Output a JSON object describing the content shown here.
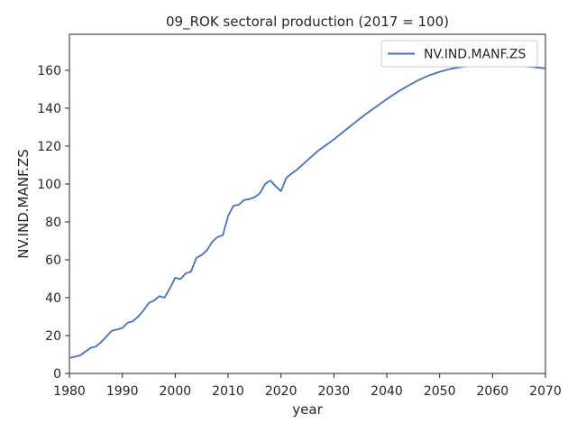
{
  "chart_data": {
    "type": "line",
    "title": "09_ROK sectoral production (2017 = 100)",
    "xlabel": "year",
    "ylabel": "NV.IND.MANF.ZS",
    "xlim": [
      1980,
      2070
    ],
    "ylim": [
      0,
      179
    ],
    "xticks": [
      1980,
      1990,
      2000,
      2010,
      2020,
      2030,
      2040,
      2050,
      2060,
      2070
    ],
    "yticks": [
      0,
      20,
      40,
      60,
      80,
      100,
      120,
      140,
      160
    ],
    "grid": false,
    "legend_position": "top-right",
    "series": [
      {
        "name": "NV.IND.MANF.ZS",
        "color": "#4c72b0",
        "x": [
          1980,
          1981,
          1982,
          1983,
          1984,
          1985,
          1986,
          1987,
          1988,
          1989,
          1990,
          1991,
          1992,
          1993,
          1994,
          1995,
          1996,
          1997,
          1998,
          1999,
          2000,
          2001,
          2002,
          2003,
          2004,
          2005,
          2006,
          2007,
          2008,
          2009,
          2010,
          2011,
          2012,
          2013,
          2014,
          2015,
          2016,
          2017,
          2018,
          2019,
          2020,
          2021,
          2022,
          2023,
          2024,
          2025,
          2026,
          2027,
          2028,
          2029,
          2030,
          2032,
          2034,
          2036,
          2038,
          2040,
          2042,
          2044,
          2046,
          2048,
          2050,
          2052,
          2054,
          2056,
          2058,
          2060,
          2062,
          2064,
          2066,
          2068,
          2070
        ],
        "values": [
          8.2,
          8.8,
          9.5,
          11.5,
          13.5,
          14.2,
          16.5,
          19.5,
          22.5,
          23.2,
          24.0,
          26.8,
          27.5,
          30.0,
          33.2,
          37.2,
          38.5,
          40.8,
          40.0,
          45.0,
          50.5,
          49.8,
          52.8,
          53.8,
          61.0,
          62.5,
          65.0,
          69.5,
          72.0,
          73.0,
          83.0,
          88.5,
          89.0,
          91.5,
          92.0,
          93.0,
          95.0,
          100.0,
          101.8,
          98.8,
          96.2,
          103.2,
          105.5,
          107.5,
          110.0,
          112.5,
          115.0,
          117.5,
          119.5,
          121.5,
          123.5,
          128.0,
          132.5,
          136.8,
          140.8,
          144.8,
          148.5,
          151.8,
          154.8,
          157.3,
          159.2,
          160.7,
          161.7,
          162.2,
          162.5,
          162.6,
          162.6,
          162.4,
          162.1,
          161.6,
          161.0
        ]
      }
    ]
  }
}
